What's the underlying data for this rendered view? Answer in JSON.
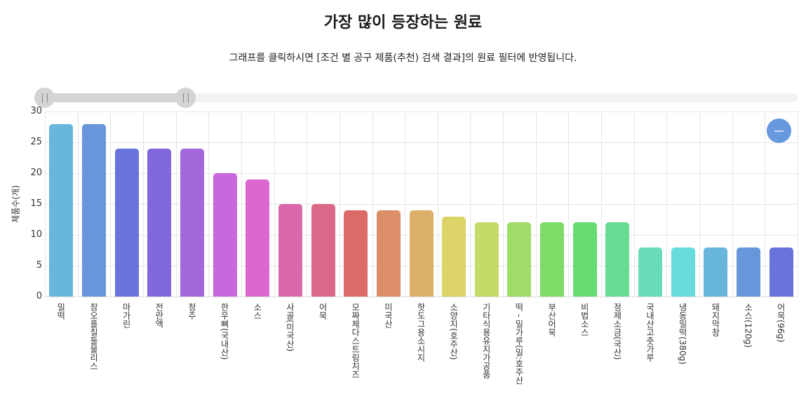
{
  "header": {
    "title": "가장 많이 등장하는 원료",
    "subtitle": "그래프를 클릭하시면 [조건 별 공구 제품(추천) 검색 결과]의 원료 필터에 반영됩니다."
  },
  "slider": {
    "left_handle_icon": "grip-icon",
    "right_handle_icon": "grip-icon",
    "grip_glyph": "||"
  },
  "reset_button": {
    "icon": "minus-icon"
  },
  "chart_data": {
    "type": "bar",
    "title": "가장 많이 등장하는 원료",
    "xlabel": "",
    "ylabel": "제품수(개)",
    "ylim": [
      0,
      30
    ],
    "yticks": [
      0,
      5,
      10,
      15,
      20,
      25,
      30
    ],
    "grid": true,
    "legend": "none",
    "categories": [
      "밀떡",
      "참오플칠돌물리스",
      "마가린",
      "전란액",
      "청주",
      "한우뼈(국내산)",
      "소스",
      "사골(미국산)",
      "어묵",
      "모짜체다스트링치즈",
      "미국산",
      "핫도그용소시지",
      "소양지(호주산)",
      "기타식용유지가공품",
      "떡 - 밀가루(밀:호주산",
      "부산어묵",
      "비법소스",
      "정제소금(국산)",
      "국내산고춧가루",
      "냉동밀떡(380g)",
      "돼지막창",
      "소스(120g)",
      "어묵(96g)"
    ],
    "values": [
      28,
      28,
      24,
      24,
      24,
      20,
      19,
      15,
      15,
      14,
      14,
      14,
      13,
      12,
      12,
      12,
      12,
      12,
      8,
      8,
      8,
      8,
      8
    ],
    "colors": [
      "#68b6dc",
      "#6896da",
      "#6873dc",
      "#8068dc",
      "#a368dc",
      "#c968dc",
      "#dc68cf",
      "#dc68ac",
      "#dc6889",
      "#dc6b68",
      "#dc8e68",
      "#dcb068",
      "#dcd468",
      "#c3dc68",
      "#a0dc68",
      "#7ddc68",
      "#68dc71",
      "#68dc95",
      "#68dcb8",
      "#68dcdc",
      "#68b6dc",
      "#6896da",
      "#6873dc"
    ]
  }
}
